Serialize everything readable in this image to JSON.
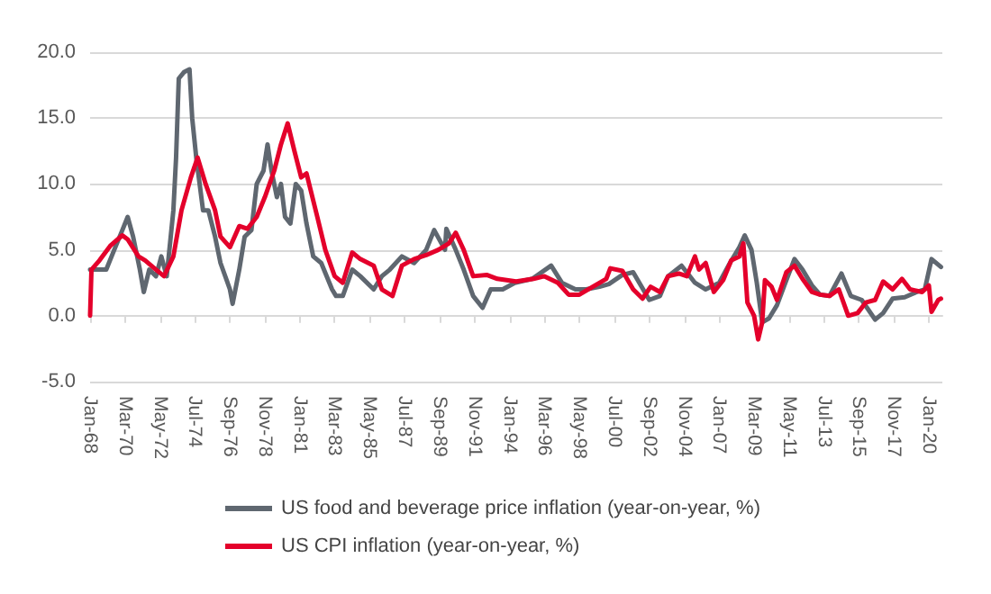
{
  "chart_data": {
    "type": "line",
    "legend": "bottom",
    "grid": "y",
    "marker": "none",
    "line_style": "solid",
    "xlim": [
      "1968-01",
      "2020-11"
    ],
    "xticks": [
      {
        "value": "1968-01",
        "label": "Jan-68"
      },
      {
        "value": "1970-03",
        "label": "Mar-70"
      },
      {
        "value": "1972-05",
        "label": "May-72"
      },
      {
        "value": "1974-07",
        "label": "Jul-74"
      },
      {
        "value": "1976-09",
        "label": "Sep-76"
      },
      {
        "value": "1978-11",
        "label": "Nov-78"
      },
      {
        "value": "1981-01",
        "label": "Jan-81"
      },
      {
        "value": "1983-03",
        "label": "Mar-83"
      },
      {
        "value": "1985-05",
        "label": "May-85"
      },
      {
        "value": "1987-07",
        "label": "Jul-87"
      },
      {
        "value": "1989-09",
        "label": "Sep-89"
      },
      {
        "value": "1991-11",
        "label": "Nov-91"
      },
      {
        "value": "1994-01",
        "label": "Jan-94"
      },
      {
        "value": "1996-03",
        "label": "Mar-96"
      },
      {
        "value": "1998-05",
        "label": "May-98"
      },
      {
        "value": "2000-07",
        "label": "Jul-00"
      },
      {
        "value": "2002-09",
        "label": "Sep-02"
      },
      {
        "value": "2004-11",
        "label": "Nov-04"
      },
      {
        "value": "2007-01",
        "label": "Jan-07"
      },
      {
        "value": "2009-03",
        "label": "Mar-09"
      },
      {
        "value": "2011-05",
        "label": "May-11"
      },
      {
        "value": "2013-07",
        "label": "Jul-13"
      },
      {
        "value": "2015-09",
        "label": "Sep-15"
      },
      {
        "value": "2017-11",
        "label": "Nov-17"
      },
      {
        "value": "2020-01",
        "label": "Jan-20"
      }
    ],
    "ylim": [
      -5,
      20
    ],
    "yticks": [
      {
        "value": -5,
        "label": "-5.0"
      },
      {
        "value": 0,
        "label": "0.0"
      },
      {
        "value": 5,
        "label": "5.0"
      },
      {
        "value": 10,
        "label": "10.0"
      },
      {
        "value": 15,
        "label": "15.0"
      },
      {
        "value": 20,
        "label": "20.0"
      }
    ],
    "series": [
      {
        "name": "US food and beverage price inflation (year-on-year, %)",
        "color": "#5f6770",
        "x": [
          "1968-01",
          "1968-07",
          "1969-01",
          "1969-07",
          "1970-01",
          "1970-05",
          "1970-09",
          "1971-02",
          "1971-05",
          "1971-09",
          "1972-02",
          "1972-06",
          "1972-10",
          "1973-03",
          "1973-05",
          "1973-07",
          "1973-11",
          "1974-03",
          "1974-05",
          "1974-08",
          "1975-01",
          "1975-05",
          "1975-10",
          "1976-02",
          "1976-09",
          "1976-11",
          "1977-04",
          "1977-08",
          "1978-01",
          "1978-05",
          "1978-10",
          "1979-01",
          "1979-04",
          "1979-08",
          "1979-11",
          "1980-02",
          "1980-06",
          "1980-10",
          "1981-02",
          "1981-06",
          "1981-11",
          "1982-05",
          "1983-01",
          "1983-04",
          "1983-09",
          "1984-04",
          "1984-10",
          "1985-08",
          "1986-02",
          "1986-08",
          "1987-05",
          "1988-02",
          "1988-11",
          "1989-05",
          "1990-01",
          "1990-02",
          "1990-09",
          "1991-03",
          "1991-10",
          "1992-05",
          "1992-11",
          "1993-08",
          "1994-05",
          "1995-06",
          "1996-08",
          "1997-04",
          "1998-02",
          "1998-10",
          "1999-08",
          "2000-03",
          "2001-01",
          "2001-09",
          "2002-09",
          "2003-05",
          "2003-11",
          "2004-09",
          "2005-07",
          "2006-03",
          "2007-01",
          "2007-09",
          "2008-04",
          "2008-08",
          "2009-01",
          "2009-05",
          "2009-09",
          "2010-02",
          "2010-08",
          "2011-03",
          "2011-09",
          "2012-03",
          "2012-10",
          "2013-04",
          "2013-11",
          "2014-08",
          "2015-03",
          "2015-11",
          "2016-09",
          "2017-03",
          "2017-10",
          "2018-07",
          "2019-04",
          "2019-10",
          "2020-03",
          "2020-10"
        ],
        "values": [
          3.5,
          3.5,
          3.5,
          5,
          6.5,
          7.5,
          6,
          3.5,
          1.8,
          3.5,
          3,
          4.5,
          3,
          8,
          12,
          18,
          18.5,
          18.7,
          15,
          12,
          8,
          8,
          6,
          4,
          2,
          0.9,
          3.5,
          6,
          6.5,
          10,
          11,
          13,
          11,
          9,
          10,
          7.5,
          7,
          10,
          9.5,
          7,
          4.5,
          4,
          2,
          1.5,
          1.5,
          3.5,
          3,
          2,
          3,
          3.5,
          4.5,
          4,
          5,
          6.5,
          5,
          6.6,
          5,
          3.5,
          1.5,
          0.6,
          2,
          2,
          2.5,
          2.8,
          3.8,
          2.5,
          2,
          2,
          2.2,
          2.4,
          3.1,
          3.3,
          1.2,
          1.5,
          3,
          3.8,
          2.5,
          2,
          2.5,
          4,
          5.2,
          6.1,
          5,
          2.5,
          -0.5,
          -0.2,
          0.8,
          2.7,
          4.3,
          3.5,
          2.3,
          1.6,
          1.5,
          3.2,
          1.5,
          1.2,
          -0.3,
          0.2,
          1.3,
          1.4,
          1.8,
          2,
          4.3,
          3.7
        ]
      },
      {
        "name": "US CPI inflation (year-on-year, %)",
        "color": "#e4002b",
        "x": [
          "1968-01",
          "1968-02",
          "1968-08",
          "1969-04",
          "1970-01",
          "1970-05",
          "1971-01",
          "1971-06",
          "1972-02",
          "1972-08",
          "1973-03",
          "1973-09",
          "1974-04",
          "1974-09",
          "1975-03",
          "1975-10",
          "1976-02",
          "1976-09",
          "1977-04",
          "1977-10",
          "1978-05",
          "1978-11",
          "1979-06",
          "1979-11",
          "1980-04",
          "1980-09",
          "1981-02",
          "1981-06",
          "1982-02",
          "1982-08",
          "1983-03",
          "1983-09",
          "1984-04",
          "1984-10",
          "1985-08",
          "1986-02",
          "1986-10",
          "1987-05",
          "1988-02",
          "1988-11",
          "1989-08",
          "1990-04",
          "1990-09",
          "1991-03",
          "1991-10",
          "1992-08",
          "1993-04",
          "1994-06",
          "1995-07",
          "1996-03",
          "1997-01",
          "1997-09",
          "1998-05",
          "1999-03",
          "2000-01",
          "2000-04",
          "2001-01",
          "2001-09",
          "2002-04",
          "2002-10",
          "2003-05",
          "2003-11",
          "2004-07",
          "2005-01",
          "2005-07",
          "2005-10",
          "2006-03",
          "2006-09",
          "2007-04",
          "2007-10",
          "2008-04",
          "2008-07",
          "2008-10",
          "2009-03",
          "2009-06",
          "2009-09",
          "2009-11",
          "2010-04",
          "2010-08",
          "2011-03",
          "2011-09",
          "2012-03",
          "2012-10",
          "2013-04",
          "2013-11",
          "2014-06",
          "2015-01",
          "2015-08",
          "2016-02",
          "2016-09",
          "2017-03",
          "2017-10",
          "2018-05",
          "2018-11",
          "2019-08",
          "2020-01",
          "2020-03",
          "2020-08",
          "2020-10"
        ],
        "values": [
          0,
          3.5,
          4.2,
          5.3,
          6.1,
          5.8,
          4.5,
          4.2,
          3.5,
          3,
          4.5,
          8,
          10.5,
          12,
          10,
          8,
          6,
          5.2,
          6.8,
          6.6,
          7.5,
          9,
          11,
          13,
          14.6,
          12.5,
          10.5,
          10.8,
          7.5,
          5,
          3,
          2.5,
          4.8,
          4.3,
          3.8,
          2,
          1.5,
          3.8,
          4.3,
          4.6,
          5,
          5.5,
          6.3,
          5,
          3,
          3.1,
          2.8,
          2.6,
          2.8,
          3,
          2.5,
          1.6,
          1.6,
          2.2,
          2.8,
          3.6,
          3.4,
          2,
          1.3,
          2.2,
          1.8,
          3,
          3.2,
          3,
          4.5,
          3.5,
          4,
          1.8,
          2.7,
          4.2,
          4.5,
          5.5,
          1,
          0,
          -1.8,
          -0.5,
          2.7,
          2.2,
          1.2,
          3.3,
          3.8,
          2.8,
          1.8,
          1.6,
          1.5,
          2,
          0,
          0.2,
          1,
          1.2,
          2.6,
          2,
          2.8,
          2,
          1.8,
          2.3,
          0.3,
          1.2,
          1.3
        ]
      }
    ]
  }
}
